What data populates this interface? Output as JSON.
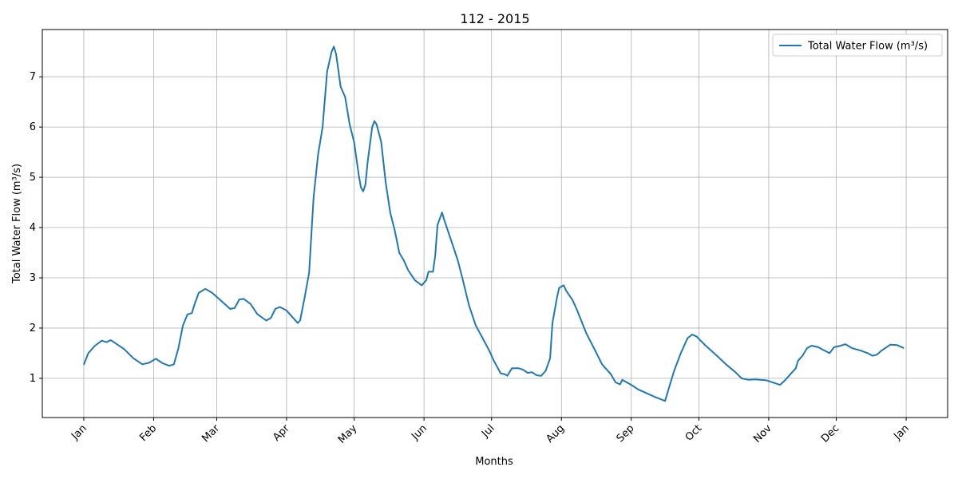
{
  "chart_data": {
    "type": "line",
    "title": "112 - 2015",
    "x_label": "Months",
    "y_label": "Total Water Flow (m³/s)",
    "x": [
      0,
      2,
      5,
      8,
      10,
      12,
      14,
      18,
      22,
      26,
      29,
      32,
      35,
      38,
      40,
      42,
      44,
      46,
      48,
      49,
      51,
      54,
      57,
      60,
      65,
      67,
      69,
      71,
      74,
      77,
      81,
      83,
      85,
      87,
      90,
      93,
      95,
      96,
      98,
      100,
      102,
      104,
      106,
      108,
      110,
      111,
      112,
      114,
      116,
      118,
      120,
      122,
      123,
      124,
      125,
      126,
      128,
      129,
      130,
      132,
      134,
      136,
      138,
      140,
      142,
      144,
      147,
      150,
      152,
      153,
      155,
      156,
      157,
      159,
      160,
      163,
      166,
      168,
      171,
      174,
      177,
      180,
      182,
      185,
      187,
      188,
      190,
      193,
      195,
      197,
      199,
      201,
      203,
      205,
      207,
      208,
      210,
      211,
      213,
      214,
      217,
      219,
      223,
      227,
      230,
      234,
      236,
      238,
      239,
      243,
      246,
      250,
      254,
      258,
      260,
      262,
      265,
      268,
      270,
      272,
      276,
      281,
      285,
      289,
      292,
      295,
      298,
      303,
      307,
      309,
      311,
      314,
      316,
      317,
      319,
      321,
      323,
      326,
      328,
      331,
      333,
      336,
      338,
      341,
      345,
      348,
      350,
      352,
      354,
      358,
      361,
      364
    ],
    "series": [
      {
        "name": "Total Water Flow (m³/s)",
        "color": "#1f77b4",
        "values": [
          1.27,
          1.5,
          1.65,
          1.75,
          1.72,
          1.76,
          1.7,
          1.58,
          1.4,
          1.28,
          1.31,
          1.39,
          1.3,
          1.25,
          1.28,
          1.6,
          2.05,
          2.27,
          2.3,
          2.45,
          2.7,
          2.78,
          2.7,
          2.58,
          2.38,
          2.4,
          2.57,
          2.58,
          2.48,
          2.28,
          2.15,
          2.2,
          2.38,
          2.42,
          2.35,
          2.2,
          2.1,
          2.15,
          2.6,
          3.1,
          4.6,
          5.45,
          6.0,
          7.1,
          7.5,
          7.6,
          7.45,
          6.8,
          6.6,
          6.05,
          5.7,
          5.05,
          4.8,
          4.72,
          4.85,
          5.3,
          6.0,
          6.12,
          6.05,
          5.7,
          4.9,
          4.3,
          3.95,
          3.5,
          3.35,
          3.15,
          2.95,
          2.85,
          2.95,
          3.12,
          3.12,
          3.45,
          4.05,
          4.3,
          4.15,
          3.75,
          3.35,
          3.0,
          2.45,
          2.05,
          1.8,
          1.55,
          1.35,
          1.1,
          1.08,
          1.05,
          1.2,
          1.2,
          1.17,
          1.11,
          1.12,
          1.06,
          1.05,
          1.15,
          1.4,
          2.1,
          2.6,
          2.8,
          2.85,
          2.75,
          2.55,
          2.35,
          1.9,
          1.55,
          1.28,
          1.08,
          0.92,
          0.88,
          0.97,
          0.87,
          0.78,
          0.7,
          0.62,
          0.55,
          0.85,
          1.15,
          1.5,
          1.8,
          1.87,
          1.83,
          1.65,
          1.45,
          1.28,
          1.13,
          1.0,
          0.97,
          0.98,
          0.96,
          0.9,
          0.87,
          0.95,
          1.1,
          1.2,
          1.35,
          1.45,
          1.6,
          1.65,
          1.62,
          1.57,
          1.5,
          1.62,
          1.65,
          1.68,
          1.6,
          1.55,
          1.5,
          1.45,
          1.47,
          1.55,
          1.67,
          1.66,
          1.6
        ]
      }
    ],
    "xlim": [
      -18.4,
      383.4
    ],
    "xticks": [
      {
        "value": 0,
        "label": "Jan"
      },
      {
        "value": 31,
        "label": "Feb"
      },
      {
        "value": 59,
        "label": "Mar"
      },
      {
        "value": 90,
        "label": "Apr"
      },
      {
        "value": 120,
        "label": "May"
      },
      {
        "value": 151,
        "label": "Jun"
      },
      {
        "value": 181,
        "label": "Jul"
      },
      {
        "value": 212,
        "label": "Aug"
      },
      {
        "value": 243,
        "label": "Sep"
      },
      {
        "value": 273,
        "label": "Oct"
      },
      {
        "value": 304,
        "label": "Nov"
      },
      {
        "value": 334,
        "label": "Dec"
      },
      {
        "value": 365,
        "label": "Jan"
      }
    ],
    "ylim": [
      0.22,
      7.94
    ],
    "yticks": [
      1,
      2,
      3,
      4,
      5,
      6,
      7
    ],
    "grid": true,
    "legend": "upper right"
  }
}
